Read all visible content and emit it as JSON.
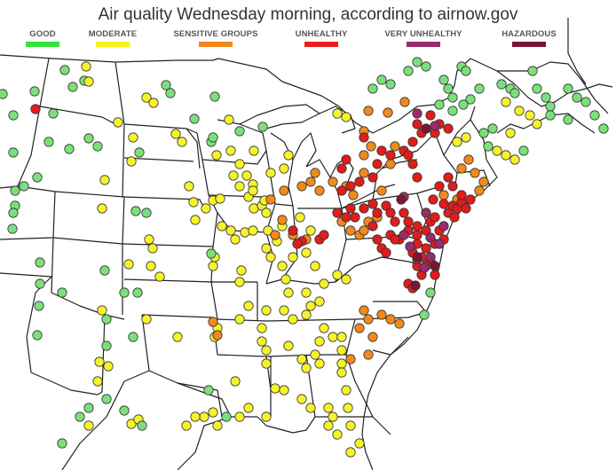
{
  "title": "Air quality Wednesday morning, according to airnow.gov",
  "legend": [
    {
      "label": "GOOD",
      "color": "#35e23a"
    },
    {
      "label": "MODERATE",
      "color": "#f5f516"
    },
    {
      "label": "SENSITIVE GROUPS",
      "color": "#f08a1c"
    },
    {
      "label": "UNHEALTHY",
      "color": "#e8201b"
    },
    {
      "label": "VERY UNHEALTHY",
      "color": "#9b2a6c"
    },
    {
      "label": "HAZARDOUS",
      "color": "#7d1532"
    }
  ],
  "colors": {
    "good": "#7be07c",
    "moderate": "#f6f32a",
    "sensitive": "#f08a1c",
    "unhealthy": "#e01d1b",
    "very_unhealthy": "#9b2a6c",
    "hazardous": "#7d1532"
  }
}
